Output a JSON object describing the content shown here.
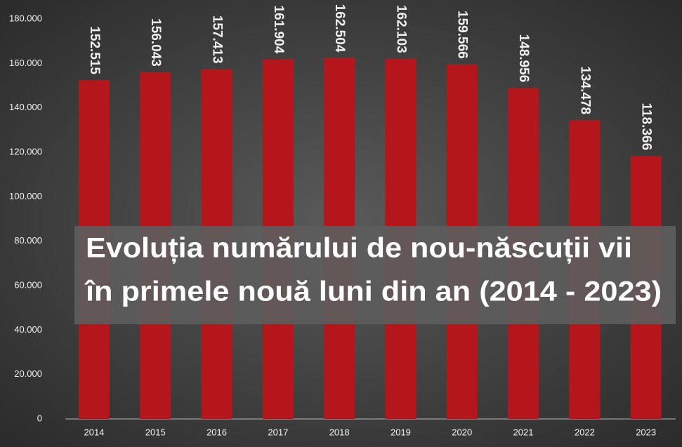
{
  "chart_data": {
    "type": "bar",
    "title": [
      "Evoluția numărului de nou-născuții vii",
      "în primele nouă luni din an (2014 - 2023)"
    ],
    "categories": [
      "2014",
      "2015",
      "2016",
      "2017",
      "2018",
      "2019",
      "2020",
      "2021",
      "2022",
      "2023"
    ],
    "values": [
      152515,
      156043,
      157413,
      161904,
      162504,
      162103,
      159566,
      148956,
      134478,
      118366
    ],
    "value_labels": [
      "152.515",
      "156.043",
      "157.413",
      "161.904",
      "162.504",
      "162.103",
      "159.566",
      "148.956",
      "134.478",
      "118.366"
    ],
    "color": "#b5161b",
    "ylim": [
      0,
      180000
    ],
    "yticks": [
      0,
      {
        "value": 20000,
        "label": "20.000"
      },
      {
        "value": 40000,
        "label": "40.000"
      },
      {
        "value": 60000,
        "label": "60.000"
      },
      {
        "value": 80000,
        "label": "80.000"
      },
      {
        "value": 100000,
        "label": "100.000"
      },
      {
        "value": 120000,
        "label": "120.000"
      },
      {
        "value": 140000,
        "label": "140.000"
      },
      {
        "value": 160000,
        "label": "160.000"
      },
      {
        "value": 180000,
        "label": "180.000"
      }
    ],
    "grid": false
  }
}
